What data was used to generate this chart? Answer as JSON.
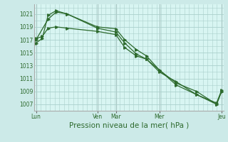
{
  "bg_color": "#cceae8",
  "plot_bg_color": "#d8f5f2",
  "grid_color": "#aad0cc",
  "line_color": "#2d6a2d",
  "title": "Pression niveau de la mer( hPa )",
  "xlabel_days": [
    "Lun",
    "Ven",
    "Mar",
    "Mer",
    "Jeu"
  ],
  "xlabel_day_x": [
    0.0,
    0.33,
    0.43,
    0.665,
    1.0
  ],
  "ylim": [
    1006.5,
    1022.5
  ],
  "yticks": [
    1007,
    1009,
    1011,
    1013,
    1015,
    1017,
    1019,
    1021
  ],
  "vline_positions": [
    0.0,
    0.33,
    0.43,
    0.665,
    1.0
  ],
  "series1_x": [
    0.0,
    0.065,
    0.108,
    0.167,
    0.33,
    0.43,
    0.478,
    0.54,
    0.595,
    0.665,
    0.755,
    0.865,
    0.973,
    1.0
  ],
  "series1_y": [
    1017.0,
    1020.2,
    1021.3,
    1021.0,
    1019.0,
    1018.7,
    1017.0,
    1015.5,
    1014.5,
    1012.3,
    1010.3,
    1009.0,
    1007.0,
    1009.0
  ],
  "series2_x": [
    0.0,
    0.033,
    0.065,
    0.108,
    0.167,
    0.33,
    0.43,
    0.478,
    0.54,
    0.595,
    0.665,
    0.755,
    0.865,
    0.973,
    1.0
  ],
  "series2_y": [
    1016.5,
    1017.2,
    1020.8,
    1021.5,
    1021.0,
    1018.8,
    1018.2,
    1016.5,
    1014.8,
    1014.0,
    1012.0,
    1010.5,
    1008.5,
    1007.2,
    1009.2
  ],
  "series3_x": [
    0.0,
    0.033,
    0.065,
    0.108,
    0.167,
    0.33,
    0.43,
    0.478,
    0.54,
    0.595,
    0.665,
    0.755,
    0.865,
    0.973,
    1.0
  ],
  "series3_y": [
    1017.2,
    1017.5,
    1018.8,
    1019.0,
    1018.8,
    1018.3,
    1017.8,
    1015.8,
    1014.5,
    1014.0,
    1012.3,
    1010.0,
    1008.5,
    1007.0,
    1009.0
  ]
}
